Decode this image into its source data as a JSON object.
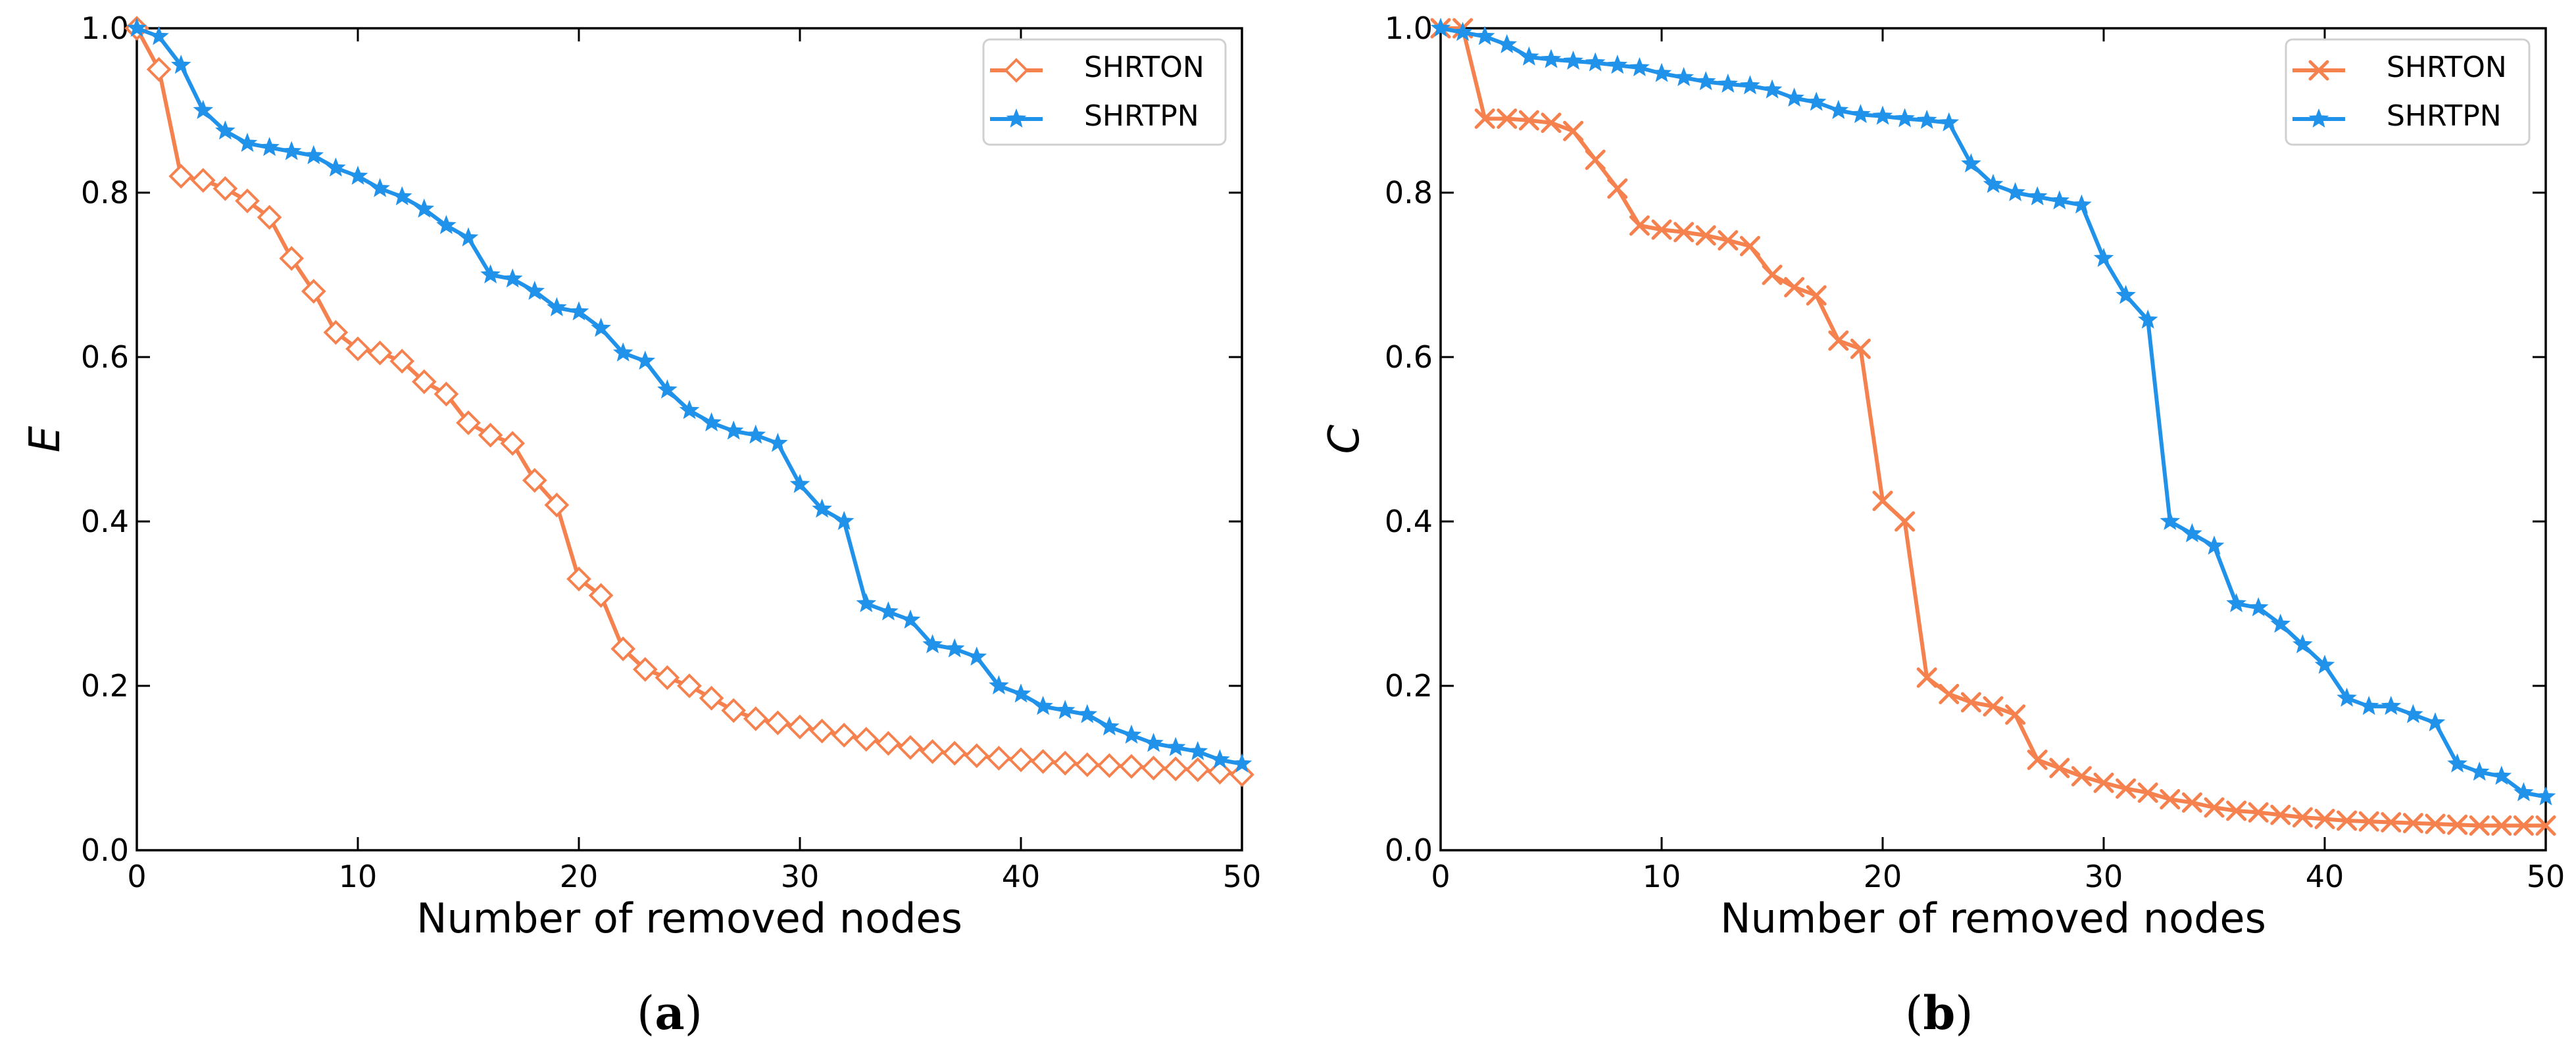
{
  "chart_data": [
    {
      "type": "line",
      "caption": {
        "open": "(",
        "letter": "a",
        "close": ")"
      },
      "xlabel": "Number of removed nodes",
      "ylabel": "E",
      "xlim": [
        0,
        50
      ],
      "ylim": [
        0,
        1.0
      ],
      "xticks": [
        0,
        10,
        20,
        30,
        40,
        50
      ],
      "yticks": [
        0.0,
        0.2,
        0.4,
        0.6,
        0.8,
        1.0
      ],
      "ytick_labels": [
        "0.0",
        "0.2",
        "0.4",
        "0.6",
        "0.8",
        "1.0"
      ],
      "legend_position": "top-right",
      "x": [
        0,
        1,
        2,
        3,
        4,
        5,
        6,
        7,
        8,
        9,
        10,
        11,
        12,
        13,
        14,
        15,
        16,
        17,
        18,
        19,
        20,
        21,
        22,
        23,
        24,
        25,
        26,
        27,
        28,
        29,
        30,
        31,
        32,
        33,
        34,
        35,
        36,
        37,
        38,
        39,
        40,
        41,
        42,
        43,
        44,
        45,
        46,
        47,
        48,
        49,
        50
      ],
      "series": [
        {
          "name": "SHRTON",
          "color": "#f5814f",
          "marker": "diamond",
          "values": [
            1.0,
            0.95,
            0.82,
            0.815,
            0.805,
            0.79,
            0.77,
            0.72,
            0.68,
            0.63,
            0.61,
            0.605,
            0.595,
            0.57,
            0.555,
            0.52,
            0.505,
            0.495,
            0.45,
            0.42,
            0.33,
            0.31,
            0.245,
            0.22,
            0.21,
            0.2,
            0.185,
            0.17,
            0.16,
            0.155,
            0.15,
            0.145,
            0.14,
            0.135,
            0.13,
            0.125,
            0.12,
            0.118,
            0.115,
            0.112,
            0.11,
            0.108,
            0.106,
            0.104,
            0.103,
            0.102,
            0.1,
            0.099,
            0.098,
            0.095,
            0.092
          ]
        },
        {
          "name": "SHRTPN",
          "color": "#2192ea",
          "marker": "star",
          "values": [
            1.0,
            0.99,
            0.955,
            0.9,
            0.875,
            0.86,
            0.855,
            0.85,
            0.845,
            0.83,
            0.82,
            0.805,
            0.795,
            0.78,
            0.76,
            0.745,
            0.7,
            0.695,
            0.68,
            0.66,
            0.655,
            0.635,
            0.605,
            0.595,
            0.56,
            0.535,
            0.52,
            0.51,
            0.505,
            0.495,
            0.445,
            0.415,
            0.4,
            0.3,
            0.29,
            0.28,
            0.25,
            0.245,
            0.235,
            0.2,
            0.19,
            0.175,
            0.17,
            0.165,
            0.15,
            0.14,
            0.13,
            0.125,
            0.12,
            0.11,
            0.105
          ]
        }
      ]
    },
    {
      "type": "line",
      "caption": {
        "open": "(",
        "letter": "b",
        "close": ")"
      },
      "xlabel": "Number of removed nodes",
      "ylabel": "C",
      "xlim": [
        0,
        50
      ],
      "ylim": [
        0,
        1.0
      ],
      "xticks": [
        0,
        10,
        20,
        30,
        40,
        50
      ],
      "yticks": [
        0.0,
        0.2,
        0.4,
        0.6,
        0.8,
        1.0
      ],
      "ytick_labels": [
        "0.0",
        "0.2",
        "0.4",
        "0.6",
        "0.8",
        "1.0"
      ],
      "legend_position": "top-right",
      "x": [
        0,
        1,
        2,
        3,
        4,
        5,
        6,
        7,
        8,
        9,
        10,
        11,
        12,
        13,
        14,
        15,
        16,
        17,
        18,
        19,
        20,
        21,
        22,
        23,
        24,
        25,
        26,
        27,
        28,
        29,
        30,
        31,
        32,
        33,
        34,
        35,
        36,
        37,
        38,
        39,
        40,
        41,
        42,
        43,
        44,
        45,
        46,
        47,
        48,
        49,
        50
      ],
      "series": [
        {
          "name": "SHRTON",
          "color": "#f5814f",
          "marker": "x",
          "values": [
            1.0,
            1.0,
            0.89,
            0.89,
            0.888,
            0.885,
            0.875,
            0.84,
            0.805,
            0.76,
            0.755,
            0.752,
            0.748,
            0.742,
            0.735,
            0.7,
            0.685,
            0.675,
            0.62,
            0.61,
            0.425,
            0.4,
            0.21,
            0.19,
            0.18,
            0.175,
            0.165,
            0.11,
            0.1,
            0.09,
            0.082,
            0.075,
            0.07,
            0.062,
            0.058,
            0.052,
            0.048,
            0.046,
            0.043,
            0.04,
            0.038,
            0.036,
            0.035,
            0.034,
            0.033,
            0.032,
            0.031,
            0.03,
            0.03,
            0.03,
            0.03
          ]
        },
        {
          "name": "SHRTPN",
          "color": "#2192ea",
          "marker": "star",
          "values": [
            1.0,
            0.995,
            0.99,
            0.98,
            0.965,
            0.962,
            0.96,
            0.958,
            0.955,
            0.952,
            0.945,
            0.94,
            0.935,
            0.932,
            0.93,
            0.925,
            0.915,
            0.91,
            0.9,
            0.895,
            0.893,
            0.89,
            0.888,
            0.885,
            0.835,
            0.81,
            0.8,
            0.795,
            0.79,
            0.785,
            0.72,
            0.675,
            0.645,
            0.4,
            0.385,
            0.37,
            0.3,
            0.295,
            0.275,
            0.25,
            0.225,
            0.185,
            0.175,
            0.175,
            0.165,
            0.155,
            0.105,
            0.095,
            0.09,
            0.07,
            0.065
          ]
        }
      ]
    }
  ]
}
